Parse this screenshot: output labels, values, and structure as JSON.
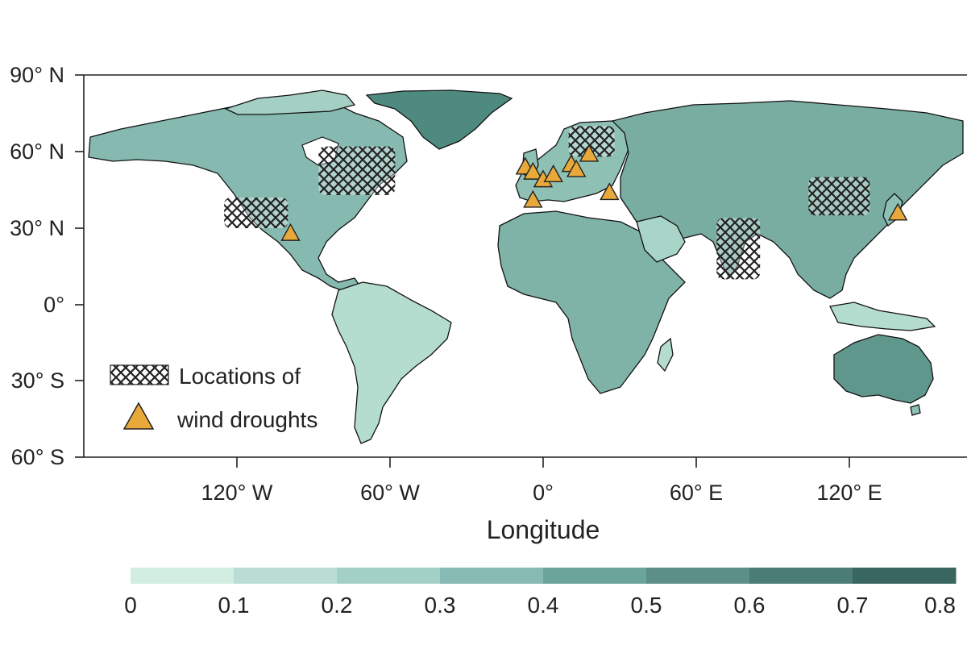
{
  "map": {
    "lat_ticks": [
      "90° N",
      "60° N",
      "30° N",
      "0°",
      "30° S",
      "60° S"
    ],
    "lon_ticks": [
      "120° W",
      "60° W",
      "0°",
      "60° E",
      "120° E"
    ],
    "xlabel": "Longitude",
    "legend": {
      "line1": "Locations of",
      "line2": "wind droughts"
    },
    "colors": {
      "land_light": "#cfe8df",
      "land_mid": "#8fc0b4",
      "land_dark": "#5e9990",
      "marker_fill": "#e8a93a",
      "hatch": "#222222"
    },
    "hatched_regions": [
      {
        "name": "western-us",
        "lon": [
          -125,
          -100
        ],
        "lat": [
          30,
          42
        ]
      },
      {
        "name": "eastern-canada",
        "lon": [
          -88,
          -58
        ],
        "lat": [
          43,
          62
        ]
      },
      {
        "name": "scandinavia",
        "lon": [
          10,
          28
        ],
        "lat": [
          58,
          70
        ]
      },
      {
        "name": "india",
        "lon": [
          68,
          85
        ],
        "lat": [
          10,
          34
        ]
      },
      {
        "name": "northern-china",
        "lon": [
          104,
          128
        ],
        "lat": [
          35,
          50
        ]
      }
    ],
    "markers": [
      {
        "lon": -99,
        "lat": 28
      },
      {
        "lon": -7,
        "lat": 54
      },
      {
        "lon": -4,
        "lat": 52
      },
      {
        "lon": 0,
        "lat": 49
      },
      {
        "lon": 4,
        "lat": 51
      },
      {
        "lon": 11,
        "lat": 55
      },
      {
        "lon": 13,
        "lat": 53
      },
      {
        "lon": 18,
        "lat": 59
      },
      {
        "lon": -4,
        "lat": 41
      },
      {
        "lon": 26,
        "lat": 44
      },
      {
        "lon": 139,
        "lat": 36
      }
    ]
  },
  "colorbar": {
    "ticks": [
      "0",
      "0.1",
      "0.2",
      "0.3",
      "0.4",
      "0.5",
      "0.6",
      "0.7",
      "0.8"
    ],
    "colors": [
      "#d2ede2",
      "#b9ddd5",
      "#a2cfc6",
      "#86bab2",
      "#6ca49c",
      "#5b8f88",
      "#4b7c75",
      "#3a6660"
    ]
  }
}
